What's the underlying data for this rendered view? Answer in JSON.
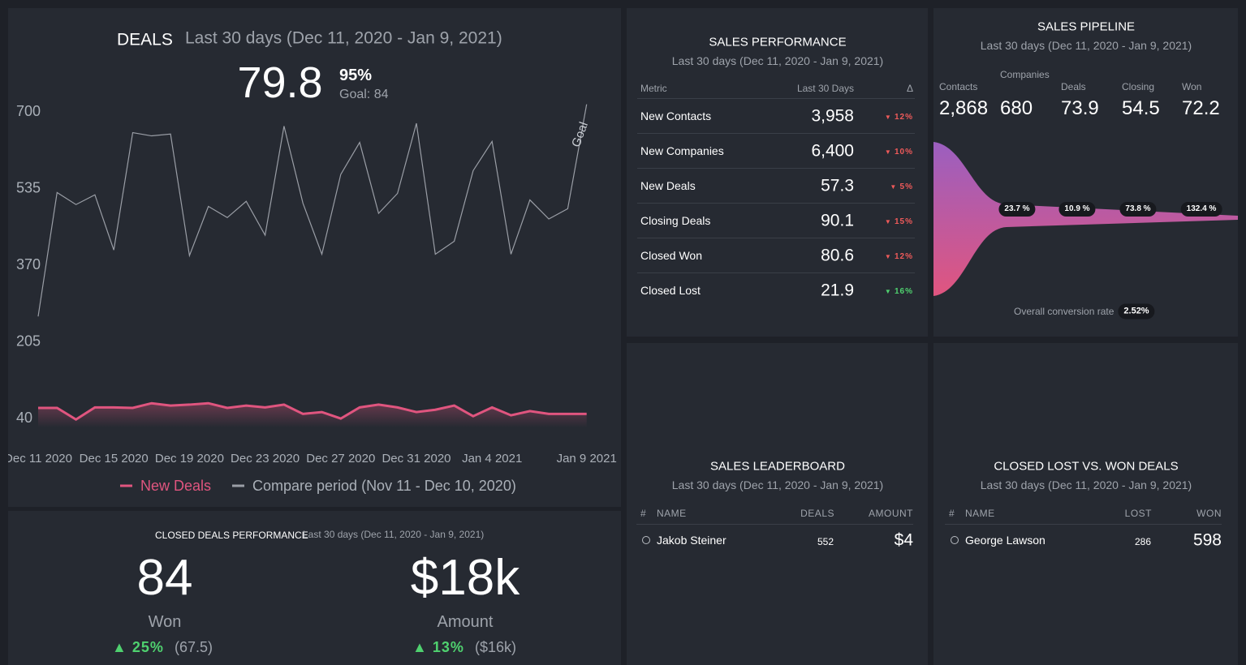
{
  "deals": {
    "title": "DEALS",
    "period": "Last 30 days (Dec 11, 2020 - Jan 9, 2021)",
    "value": "79.8",
    "percent": "95%",
    "goal": "Goal: 84",
    "chart_data": {
      "type": "line",
      "categories": [
        "Dec 11 2020",
        null,
        null,
        null,
        "Dec 15 2020",
        null,
        null,
        null,
        "Dec 19 2020",
        null,
        null,
        null,
        "Dec 23 2020",
        null,
        null,
        null,
        "Dec 27 2020",
        null,
        null,
        null,
        "Dec 31 2020",
        null,
        null,
        null,
        "Jan 4 2021",
        null,
        null,
        null,
        null,
        "Jan 9 2021"
      ],
      "series": [
        {
          "name": "New Deals",
          "color": "#e0557f",
          "values": [
            63,
            63,
            38,
            64,
            64,
            63,
            73,
            68,
            70,
            73,
            63,
            68,
            64,
            70,
            50,
            54,
            40,
            64,
            70,
            64,
            54,
            59,
            68,
            45,
            64,
            47,
            56,
            50,
            50,
            50
          ]
        },
        {
          "name": "Compare period (Nov 11 - Dec 10, 2020)",
          "color": "#9a9ea6",
          "values": [
            260,
            527,
            501,
            522,
            403,
            656,
            649,
            653,
            391,
            497,
            473,
            508,
            435,
            670,
            504,
            394,
            566,
            635,
            482,
            525,
            676,
            394,
            422,
            574,
            637,
            394,
            511,
            470,
            492,
            717
          ]
        }
      ],
      "ylim": [
        0,
        760
      ],
      "yticks": [
        700,
        535,
        370,
        205,
        40
      ],
      "goal_label": "Goal",
      "grid": false
    }
  },
  "closed_deals": {
    "title": "CLOSED DEALS PERFORMANCE",
    "period": "Last 30 days (Dec 11, 2020 - Jan 9, 2021)",
    "kpis": [
      {
        "value": "84",
        "label": "Won",
        "change": "25%",
        "previous": "(67.5)"
      },
      {
        "value": "$18k",
        "label": "Amount",
        "change": "13%",
        "previous": "($16k)"
      }
    ]
  },
  "sales_performance": {
    "title": "SALES PERFORMANCE",
    "period": "Last 30 days (Dec 11, 2020 - Jan 9, 2021)",
    "columns": [
      "Metric",
      "Last 30 Days",
      "Δ"
    ],
    "rows": [
      {
        "metric": "New Contacts",
        "value": "3,958",
        "change": "12%",
        "good": false
      },
      {
        "metric": "New Companies",
        "value": "6,400",
        "change": "10%",
        "good": false
      },
      {
        "metric": "New Deals",
        "value": "57.3",
        "change": "5%",
        "good": false
      },
      {
        "metric": "Closing Deals",
        "value": "90.1",
        "change": "15%",
        "good": false
      },
      {
        "metric": "Closed Won",
        "value": "80.6",
        "change": "12%",
        "good": false
      },
      {
        "metric": "Closed Lost",
        "value": "21.9",
        "change": "16%",
        "good": true
      }
    ]
  },
  "sales_pipeline": {
    "title": "SALES PIPELINE",
    "period": "Last 30 days (Dec 11, 2020 - Jan 9, 2021)",
    "stages": [
      {
        "label": "Contacts",
        "value": "2,868"
      },
      {
        "label": "Companies",
        "value": "680"
      },
      {
        "label": "Deals",
        "value": "73.9"
      },
      {
        "label": "Closing",
        "value": "54.5"
      },
      {
        "label": "Won",
        "value": "72.2"
      }
    ],
    "conversions": [
      "23.7 %",
      "10.9 %",
      "73.8 %",
      "132.4 %"
    ],
    "overall_label": "Overall conversion rate",
    "overall_value": "2.52%"
  },
  "leaderboard": {
    "title": "SALES LEADERBOARD",
    "period": "Last 30 days (Dec 11, 2020 - Jan 9, 2021)",
    "columns": [
      "#",
      "NAME",
      "DEALS",
      "AMOUNT"
    ],
    "rows": [
      {
        "name": "Jakob Steiner",
        "deals": "552",
        "amount": "$4"
      }
    ]
  },
  "lost_won": {
    "title": "CLOSED LOST VS. WON DEALS",
    "period": "Last 30 days (Dec 11, 2020 - Jan 9, 2021)",
    "columns": [
      "#",
      "NAME",
      "LOST",
      "WON"
    ],
    "rows": [
      {
        "name": "George Lawson",
        "lost": "286",
        "won": "598"
      }
    ]
  }
}
